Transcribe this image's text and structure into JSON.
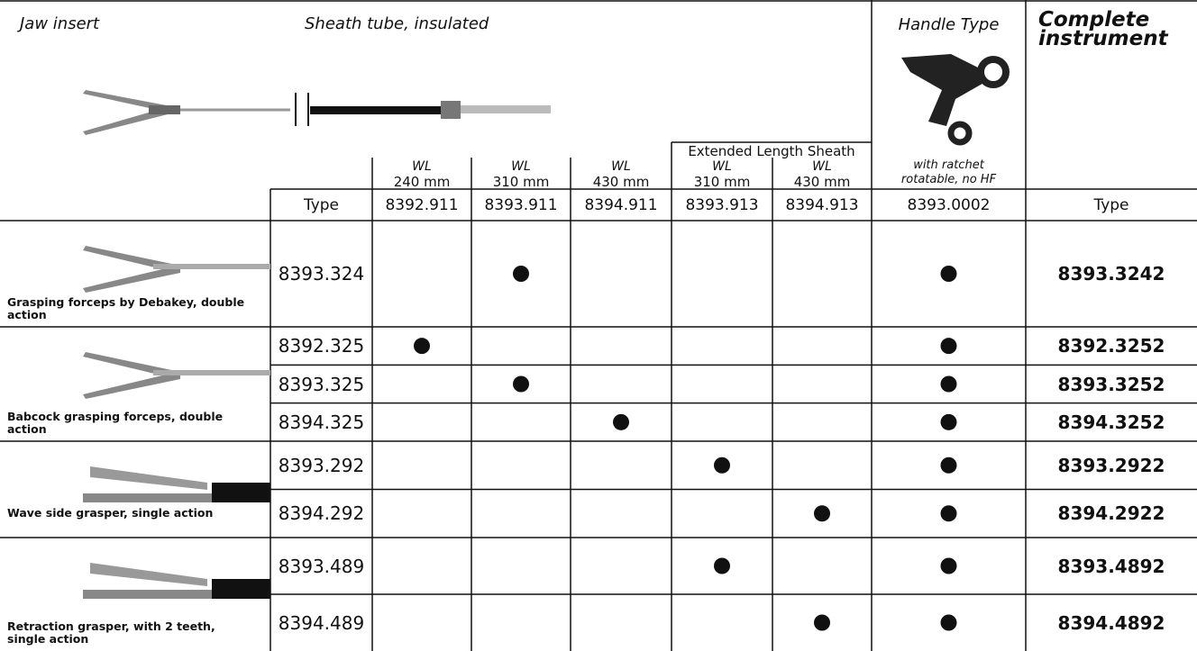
{
  "header": {
    "jaw_insert": "Jaw insert",
    "sheath_tube": "Sheath tube, insulated",
    "handle_type": "Handle Type",
    "complete_instrument": "Complete instrument",
    "extended_length": "Extended Length Sheath",
    "sheaths": [
      {
        "wl": "WL",
        "length": "240 mm"
      },
      {
        "wl": "WL",
        "length": "310 mm"
      },
      {
        "wl": "WL",
        "length": "430 mm"
      },
      {
        "wl": "WL",
        "length": "310 mm"
      },
      {
        "wl": "WL",
        "length": "430 mm"
      }
    ],
    "handle_notes": [
      "with ratchet",
      "rotatable, no HF"
    ]
  },
  "type_row": {
    "label": "Type",
    "sheath_types": [
      "8392.911",
      "8393.911",
      "8394.911",
      "8393.913",
      "8394.913"
    ],
    "handle_type": "8393.0002",
    "complete_label": "Type"
  },
  "groups": [
    {
      "name": "Grasping forceps by Debakey, double action",
      "rows": [
        {
          "jaw_insert": "8393.324",
          "sheaths": [
            false,
            true,
            false,
            false,
            false
          ],
          "handle": true,
          "complete": "8393.3242"
        }
      ]
    },
    {
      "name": "Babcock grasping forceps, double action",
      "rows": [
        {
          "jaw_insert": "8392.325",
          "sheaths": [
            true,
            false,
            false,
            false,
            false
          ],
          "handle": true,
          "complete": "8392.3252"
        },
        {
          "jaw_insert": "8393.325",
          "sheaths": [
            false,
            true,
            false,
            false,
            false
          ],
          "handle": true,
          "complete": "8393.3252"
        },
        {
          "jaw_insert": "8394.325",
          "sheaths": [
            false,
            false,
            true,
            false,
            false
          ],
          "handle": true,
          "complete": "8394.3252"
        }
      ]
    },
    {
      "name": "Wave side grasper, single action",
      "rows": [
        {
          "jaw_insert": "8393.292",
          "sheaths": [
            false,
            false,
            false,
            true,
            false
          ],
          "handle": true,
          "complete": "8393.2922"
        },
        {
          "jaw_insert": "8394.292",
          "sheaths": [
            false,
            false,
            false,
            false,
            true
          ],
          "handle": true,
          "complete": "8394.2922"
        }
      ]
    },
    {
      "name": "Retraction grasper, with 2 teeth, single action",
      "rows": [
        {
          "jaw_insert": "8393.489",
          "sheaths": [
            false,
            false,
            false,
            true,
            false
          ],
          "handle": true,
          "complete": "8393.4892"
        },
        {
          "jaw_insert": "8394.489",
          "sheaths": [
            false,
            false,
            false,
            false,
            true
          ],
          "handle": true,
          "complete": "8394.4892"
        }
      ]
    }
  ]
}
